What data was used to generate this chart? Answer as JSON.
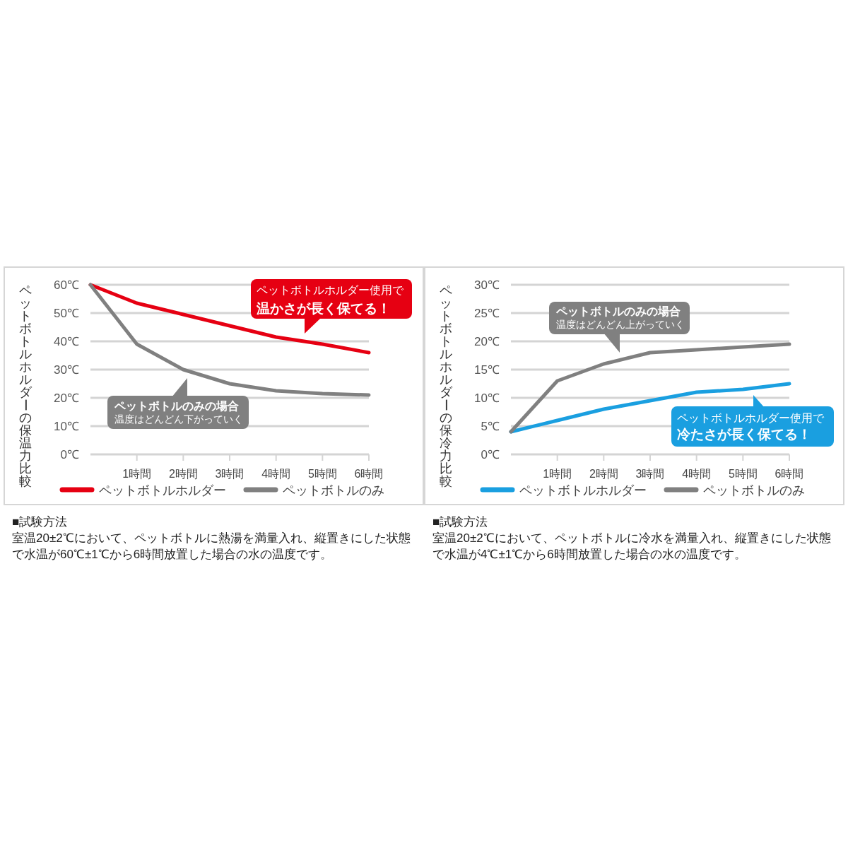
{
  "chart_data": [
    {
      "type": "line",
      "ylabel": "ペットボトルホルダーの保温力比較",
      "categories": [
        null,
        "1時間",
        "2時間",
        "3時間",
        "4時間",
        "5時間",
        "6時間"
      ],
      "series": [
        {
          "name": "ペットボトルホルダー",
          "color": "#e60012",
          "values": [
            60,
            53.5,
            49.5,
            45.5,
            41.5,
            39,
            36
          ]
        },
        {
          "name": "ペットボトルのみ",
          "color": "#808080",
          "values": [
            60,
            39,
            30,
            25,
            22.5,
            21.5,
            21
          ]
        }
      ],
      "ylim": [
        0,
        60
      ],
      "yticks": [
        {
          "value": 0,
          "label": "0℃"
        },
        {
          "value": 10,
          "label": "10℃"
        },
        {
          "value": 20,
          "label": "20℃"
        },
        {
          "value": 30,
          "label": "30℃"
        },
        {
          "value": 40,
          "label": "40℃"
        },
        {
          "value": 50,
          "label": "50℃"
        },
        {
          "value": 60,
          "label": "60℃"
        }
      ],
      "grid": "y",
      "legend": "bottom",
      "annotations": [
        "ペットボトルホルダー使用で",
        "温かさが長く保てる！",
        "ペットボトルのみの場合",
        "温度はどんどん下がっていく",
        "■試験方法",
        "室温20±2℃において、ペットボトルに熱湯を満量入れ、縦置きにした状態で水温が60℃±1℃から6時間放置した場合の水の温度です。"
      ]
    },
    {
      "type": "line",
      "ylabel": "ペットボトルホルダーの保冷力比較",
      "categories": [
        null,
        "1時間",
        "2時間",
        "3時間",
        "4時間",
        "5時間",
        "6時間"
      ],
      "series": [
        {
          "name": "ペットボトルホルダー",
          "color": "#1a9fe0",
          "values": [
            4,
            6,
            8,
            9.5,
            11,
            11.5,
            12.5
          ]
        },
        {
          "name": "ペットボトルのみ",
          "color": "#808080",
          "values": [
            4,
            13,
            16,
            18,
            18.5,
            19,
            19.5
          ]
        }
      ],
      "ylim": [
        0,
        30
      ],
      "yticks": [
        {
          "value": 0,
          "label": "0℃"
        },
        {
          "value": 5,
          "label": "5℃"
        },
        {
          "value": 10,
          "label": "10℃"
        },
        {
          "value": 15,
          "label": "15℃"
        },
        {
          "value": 20,
          "label": "20℃"
        },
        {
          "value": 25,
          "label": "25℃"
        },
        {
          "value": 30,
          "label": "30℃"
        }
      ],
      "grid": "y",
      "legend": "bottom",
      "annotations": [
        "ペットボトルのみの場合",
        "温度はどんどん上がっていく",
        "ペットボトルホルダー使用で",
        "冷たさが長く保てる！",
        "■試験方法",
        "室温20±2℃において、ペットボトルに冷水を満量入れ、縦置きにした状態で水温が4℃±1℃から6時間放置した場合の水の温度です。"
      ]
    }
  ]
}
